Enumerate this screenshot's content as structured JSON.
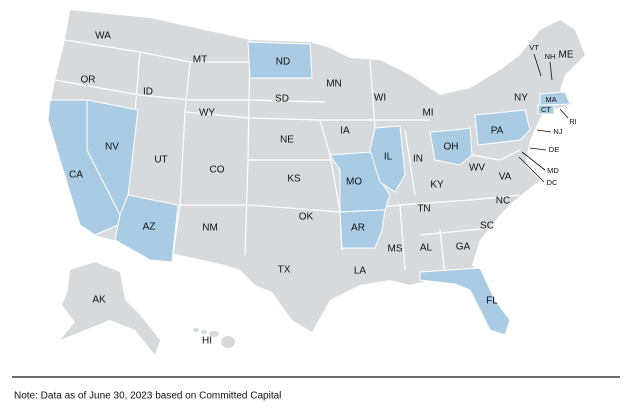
{
  "map": {
    "base_color": "#d7dadd",
    "highlight_color": "#a9cbe3",
    "states": [
      {
        "label": "WA",
        "highlighted": false
      },
      {
        "label": "OR",
        "highlighted": false
      },
      {
        "label": "CA",
        "highlighted": true
      },
      {
        "label": "NV",
        "highlighted": true
      },
      {
        "label": "ID",
        "highlighted": false
      },
      {
        "label": "MT",
        "highlighted": false
      },
      {
        "label": "WY",
        "highlighted": false
      },
      {
        "label": "UT",
        "highlighted": false
      },
      {
        "label": "AZ",
        "highlighted": true
      },
      {
        "label": "CO",
        "highlighted": false
      },
      {
        "label": "NM",
        "highlighted": false
      },
      {
        "label": "ND",
        "highlighted": true
      },
      {
        "label": "SD",
        "highlighted": false
      },
      {
        "label": "NE",
        "highlighted": false
      },
      {
        "label": "KS",
        "highlighted": false
      },
      {
        "label": "OK",
        "highlighted": false
      },
      {
        "label": "TX",
        "highlighted": false
      },
      {
        "label": "MN",
        "highlighted": false
      },
      {
        "label": "IA",
        "highlighted": false
      },
      {
        "label": "MO",
        "highlighted": true
      },
      {
        "label": "AR",
        "highlighted": true
      },
      {
        "label": "LA",
        "highlighted": false
      },
      {
        "label": "WI",
        "highlighted": false
      },
      {
        "label": "IL",
        "highlighted": true
      },
      {
        "label": "MI",
        "highlighted": false
      },
      {
        "label": "IN",
        "highlighted": false
      },
      {
        "label": "OH",
        "highlighted": true
      },
      {
        "label": "KY",
        "highlighted": false
      },
      {
        "label": "TN",
        "highlighted": false
      },
      {
        "label": "MS",
        "highlighted": false
      },
      {
        "label": "AL",
        "highlighted": false
      },
      {
        "label": "GA",
        "highlighted": false
      },
      {
        "label": "FL",
        "highlighted": true
      },
      {
        "label": "SC",
        "highlighted": false
      },
      {
        "label": "NC",
        "highlighted": false
      },
      {
        "label": "VA",
        "highlighted": false
      },
      {
        "label": "WV",
        "highlighted": false
      },
      {
        "label": "PA",
        "highlighted": true
      },
      {
        "label": "NY",
        "highlighted": false
      },
      {
        "label": "VT",
        "highlighted": false
      },
      {
        "label": "NH",
        "highlighted": false
      },
      {
        "label": "ME",
        "highlighted": false
      },
      {
        "label": "MA",
        "highlighted": true
      },
      {
        "label": "CT",
        "highlighted": true
      },
      {
        "label": "RI",
        "highlighted": false
      },
      {
        "label": "NJ",
        "highlighted": false
      },
      {
        "label": "DE",
        "highlighted": false
      },
      {
        "label": "MD",
        "highlighted": false
      },
      {
        "label": "DC",
        "highlighted": false
      },
      {
        "label": "AK",
        "highlighted": false
      },
      {
        "label": "HI",
        "highlighted": false
      }
    ]
  },
  "note": "Note: Data as of June 30, 2023 based on Committed Capital"
}
